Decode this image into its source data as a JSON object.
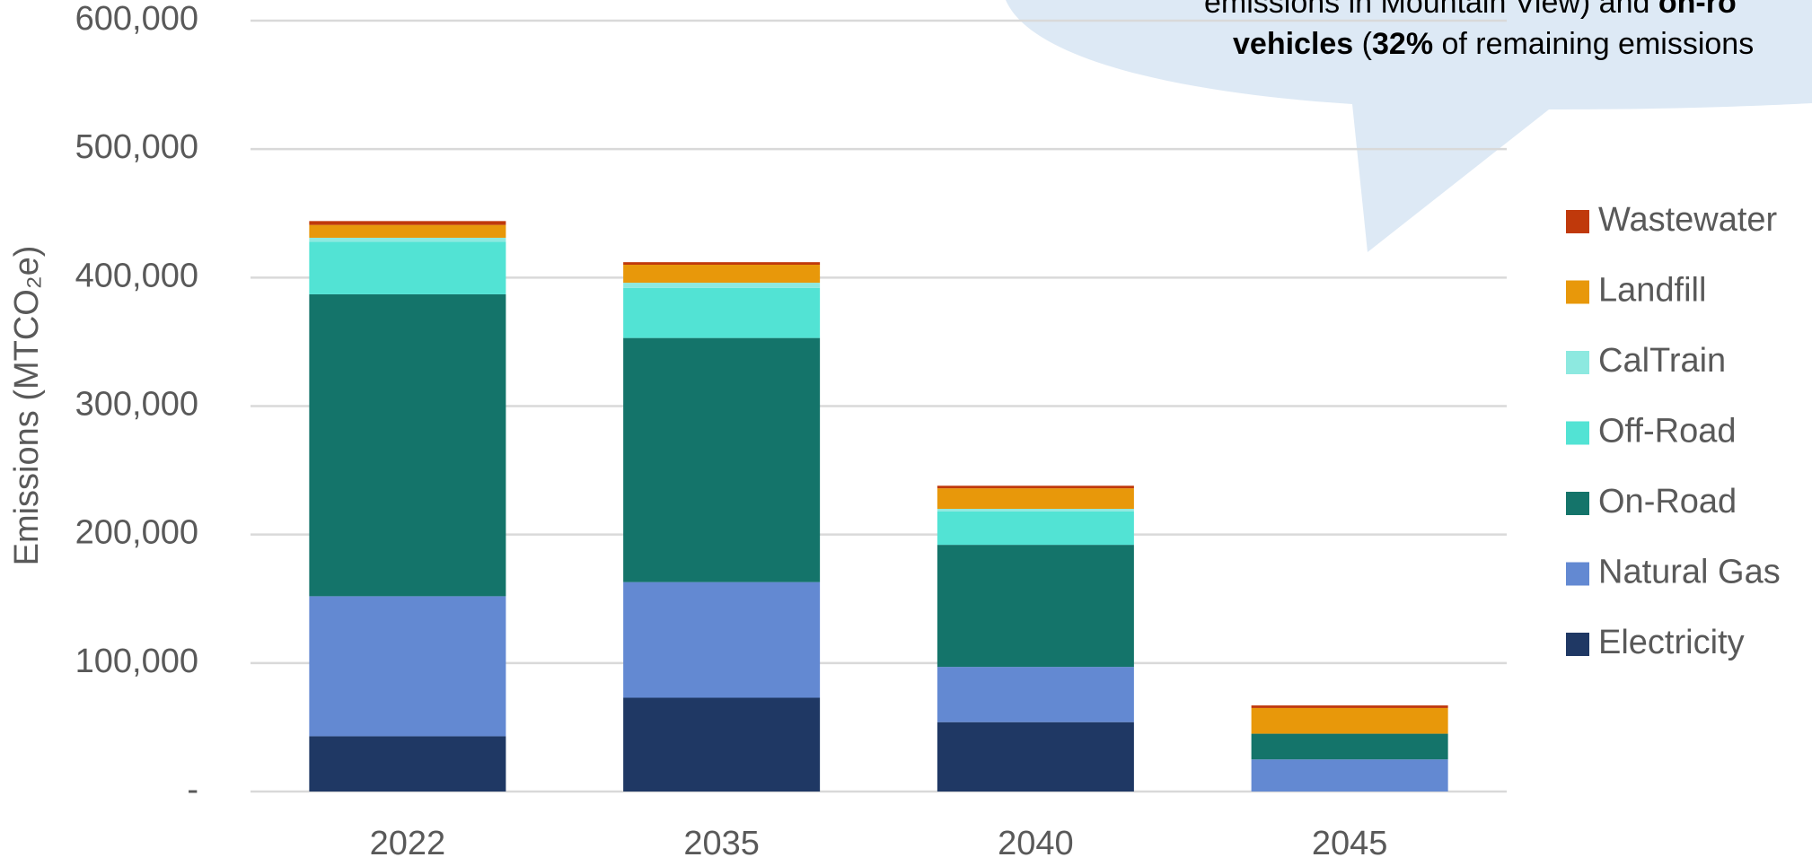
{
  "chart_data": {
    "type": "stacked_bar",
    "y_label": "Emissions (MTCO₂e)",
    "annotation": [
      [
        {
          "text": "emissions in Mountain View) and ",
          "bold": false
        },
        {
          "text": "on-ro",
          "bold": true
        }
      ],
      [
        {
          "text": "vehicles",
          "bold": true
        },
        {
          "text": " (",
          "bold": false
        },
        {
          "text": "32%",
          "bold": true
        },
        {
          "text": " of remaining emissions",
          "bold": false
        }
      ]
    ],
    "categories": [
      "2022",
      "2035",
      "2040",
      "2045"
    ],
    "series": [
      {
        "name": "Electricity",
        "color": "#1f3864",
        "values": [
          43000,
          73000,
          54000,
          0
        ]
      },
      {
        "name": "Natural Gas",
        "color": "#6389d2",
        "values": [
          109000,
          90000,
          43000,
          25000
        ]
      },
      {
        "name": "On-Road",
        "color": "#14746a",
        "values": [
          235000,
          190000,
          95000,
          20000
        ]
      },
      {
        "name": "Off-Road",
        "color": "#52e3d4",
        "values": [
          41000,
          39000,
          26000,
          0
        ]
      },
      {
        "name": "CalTrain",
        "color": "#8de9e0",
        "values": [
          3000,
          4000,
          2000,
          0
        ]
      },
      {
        "name": "Landfill",
        "color": "#e8980a",
        "values": [
          10000,
          14000,
          16000,
          20000
        ]
      },
      {
        "name": "Wastewater",
        "color": "#c0390b",
        "values": [
          3000,
          2000,
          2000,
          2000
        ]
      }
    ],
    "ylim": [
      0,
      600000
    ],
    "yticks": [
      {
        "value": 0,
        "label": "-"
      },
      {
        "value": 100000,
        "label": "100,000"
      },
      {
        "value": 200000,
        "label": "200,000"
      },
      {
        "value": 300000,
        "label": "300,000"
      },
      {
        "value": 400000,
        "label": "400,000"
      },
      {
        "value": 500000,
        "label": "500,000"
      },
      {
        "value": 600000,
        "label": "600,000"
      }
    ],
    "grid": true,
    "legend": "right"
  }
}
